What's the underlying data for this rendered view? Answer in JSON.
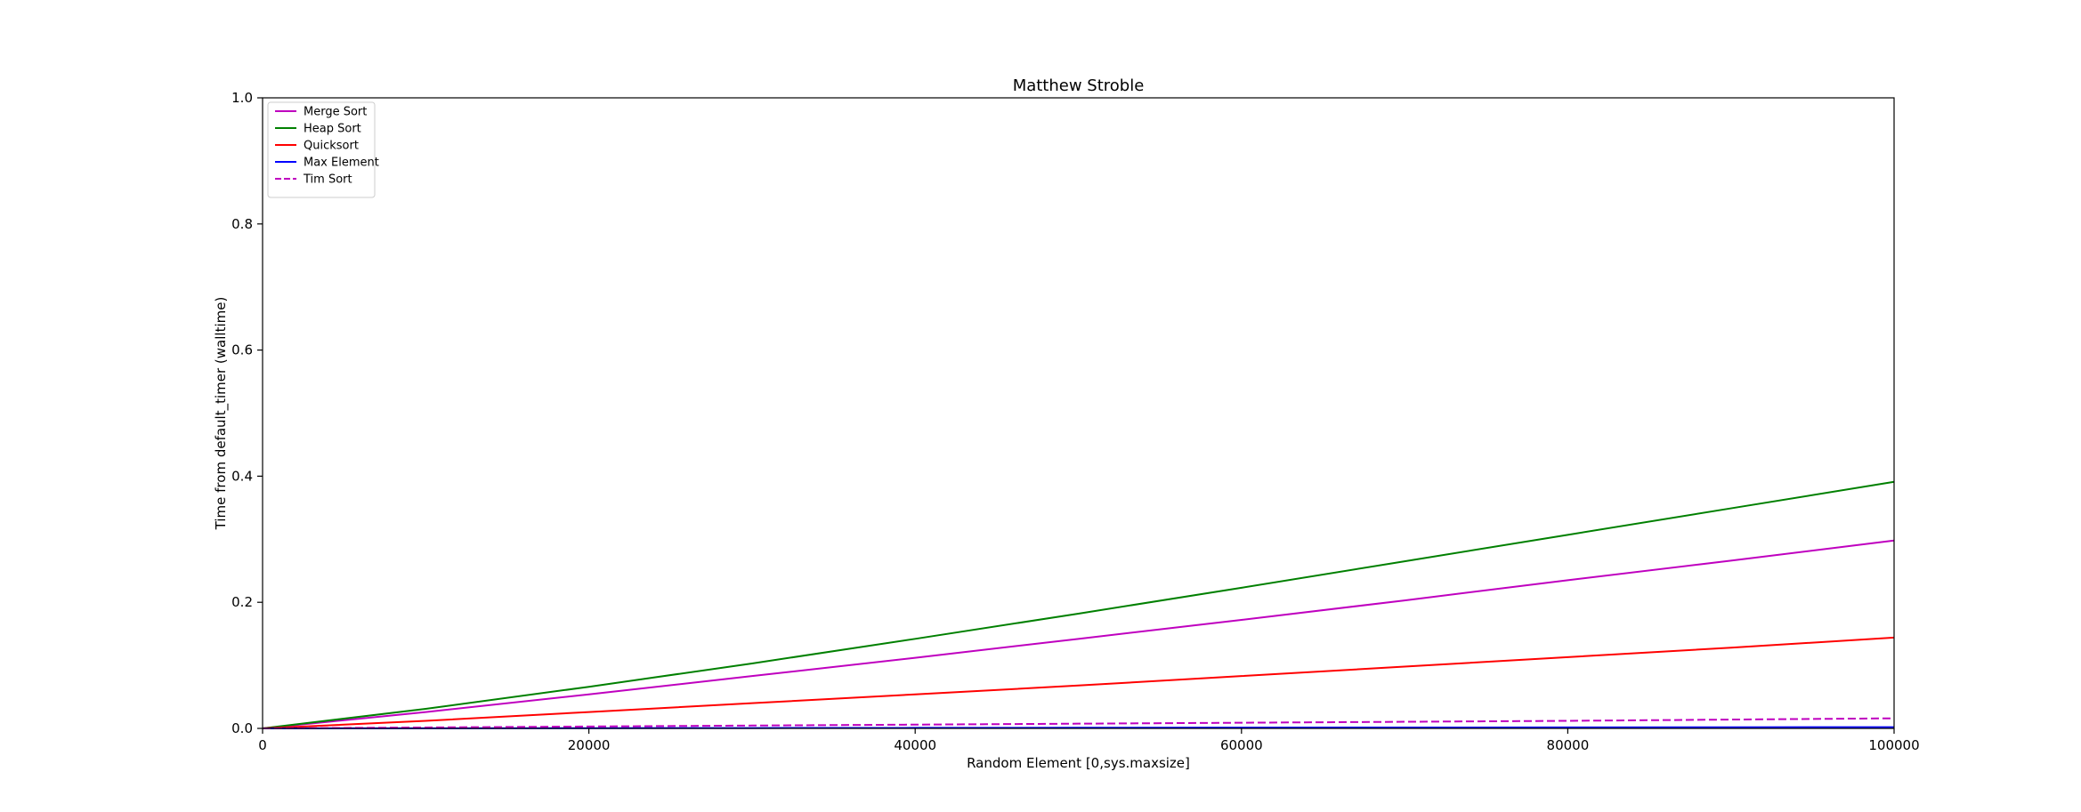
{
  "chart_data": {
    "type": "line",
    "title": "Matthew Stroble",
    "xlabel": "Random Element [0,sys.maxsize]",
    "ylabel": "Time from default_timer (walltime)",
    "xlim": [
      0,
      100000
    ],
    "ylim": [
      0,
      1.0
    ],
    "xticks": [
      0,
      20000,
      40000,
      60000,
      80000,
      100000
    ],
    "yticks": [
      0.0,
      0.2,
      0.4,
      0.6,
      0.8,
      1.0
    ],
    "xtick_labels": [
      "0",
      "20000",
      "40000",
      "60000",
      "80000",
      "100000"
    ],
    "ytick_labels": [
      "0.0",
      "0.2",
      "0.4",
      "0.6",
      "0.8",
      "1.0"
    ],
    "grid": false,
    "legend_position": "top-left",
    "x": [
      0,
      10000,
      20000,
      30000,
      40000,
      50000,
      60000,
      70000,
      80000,
      90000,
      100000
    ],
    "series": [
      {
        "name": "Merge Sort",
        "color": "#bf00bf",
        "dash": "solid",
        "values": [
          0,
          0.026,
          0.054,
          0.083,
          0.112,
          0.142,
          0.172,
          0.203,
          0.235,
          0.266,
          0.298
        ]
      },
      {
        "name": "Heap Sort",
        "color": "#008000",
        "dash": "solid",
        "values": [
          0,
          0.031,
          0.066,
          0.103,
          0.142,
          0.182,
          0.223,
          0.265,
          0.307,
          0.349,
          0.391
        ]
      },
      {
        "name": "Quicksort",
        "color": "#ff0000",
        "dash": "solid",
        "values": [
          0,
          0.012,
          0.026,
          0.04,
          0.054,
          0.068,
          0.083,
          0.098,
          0.113,
          0.128,
          0.144
        ]
      },
      {
        "name": "Max Element",
        "color": "#0000ff",
        "dash": "solid",
        "values": [
          0,
          0.0002,
          0.0004,
          0.0006,
          0.0008,
          0.001,
          0.0012,
          0.0014,
          0.0016,
          0.0018,
          0.002
        ]
      },
      {
        "name": "Tim Sort",
        "color": "#bf00bf",
        "dash": "dashed",
        "values": [
          0,
          0.0015,
          0.003,
          0.0045,
          0.006,
          0.0075,
          0.009,
          0.0105,
          0.012,
          0.014,
          0.016
        ]
      }
    ]
  }
}
